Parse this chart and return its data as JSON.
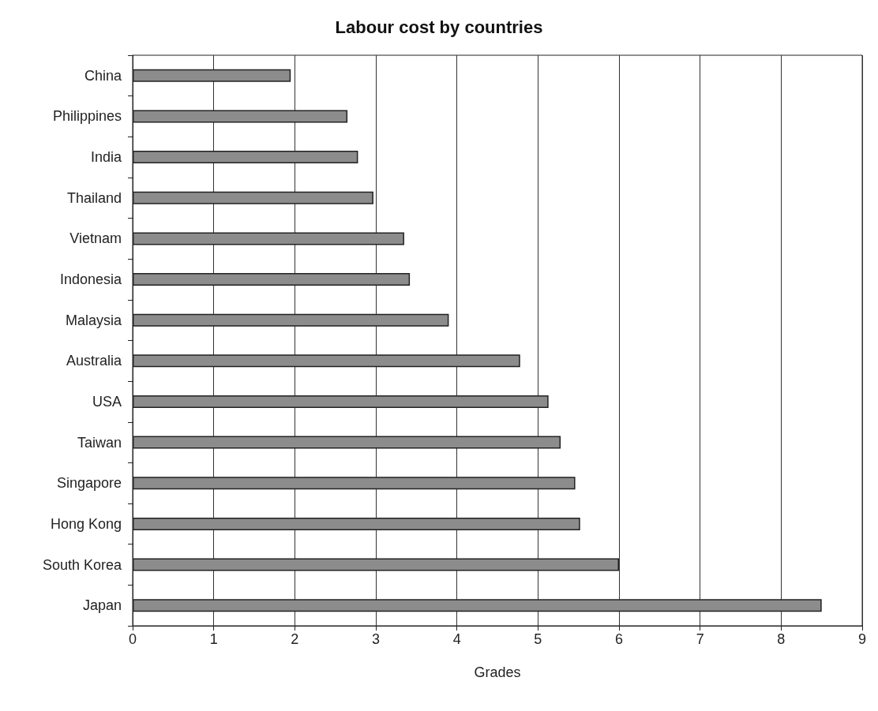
{
  "chart_data": {
    "type": "bar",
    "orientation": "horizontal",
    "title": "Labour cost by countries",
    "xlabel": "Grades",
    "categories": [
      "China",
      "Philippines",
      "India",
      "Thailand",
      "Vietnam",
      "Indonesia",
      "Malaysia",
      "Australia",
      "USA",
      "Taiwan",
      "Singapore",
      "Hong Kong",
      "South Korea",
      "Japan"
    ],
    "values": [
      1.95,
      2.65,
      2.78,
      2.97,
      3.35,
      3.42,
      3.9,
      4.78,
      5.13,
      5.28,
      5.46,
      5.52,
      6.0,
      8.5
    ],
    "color": "#8c8c8c",
    "xlim": [
      0,
      9
    ],
    "xticks": [
      0,
      1,
      2,
      3,
      4,
      5,
      6,
      7,
      8,
      9
    ],
    "grid": "x"
  }
}
